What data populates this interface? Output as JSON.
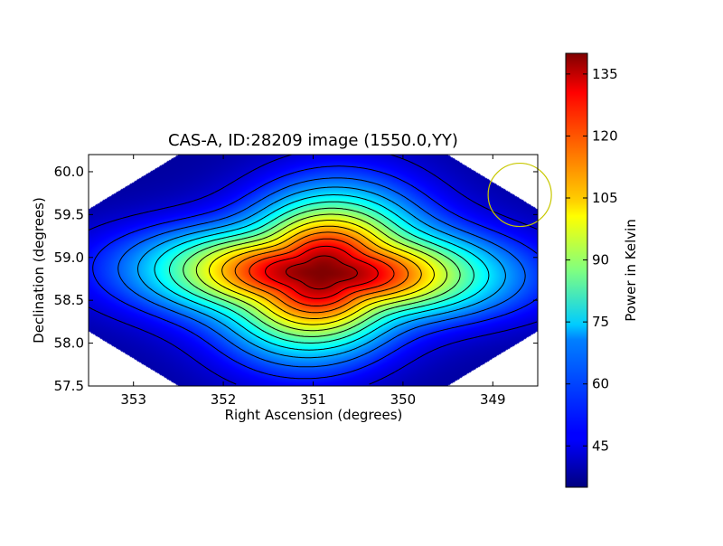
{
  "chart_data": {
    "type": "heatmap",
    "title": "CAS-A, ID:28209 image (1550.0,YY)",
    "xlabel": "Right Ascension (degrees)",
    "ylabel": "Declination (degrees)",
    "xlim": [
      353.5,
      348.5
    ],
    "ylim": [
      57.5,
      60.2
    ],
    "x_ticks": [
      353,
      352,
      351,
      350,
      349
    ],
    "x_tick_labels": [
      "353",
      "352",
      "351",
      "350",
      "349"
    ],
    "y_ticks": [
      57.5,
      58.0,
      58.5,
      59.0,
      59.5,
      60.0
    ],
    "y_tick_labels": [
      "57.5",
      "58.0",
      "58.5",
      "59.0",
      "59.5",
      "60.0"
    ],
    "colorbar": {
      "label": "Power in Kelvin",
      "range": [
        35,
        140
      ],
      "ticks": [
        45,
        60,
        75,
        90,
        105,
        120,
        135
      ],
      "tick_labels": [
        "45",
        "60",
        "75",
        "90",
        "105",
        "120",
        "135"
      ],
      "colormap": "jet"
    },
    "source": {
      "peak_ra": 350.9,
      "peak_dec": 58.82,
      "peak_value": 140,
      "background_value": 38
    },
    "contour_levels": [
      44,
      51,
      58,
      65,
      72,
      79,
      86,
      93,
      100,
      107,
      114,
      121,
      128,
      135
    ],
    "beam_marker": {
      "ra": 348.7,
      "dec": 59.73,
      "color": "#c8c800"
    },
    "grid": false
  }
}
